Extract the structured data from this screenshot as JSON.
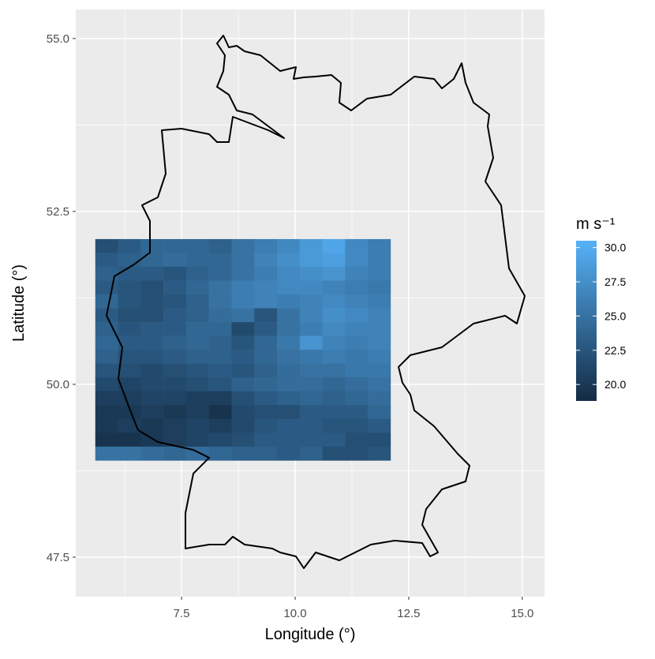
{
  "chart_data": {
    "type": "heatmap",
    "x_label": "Longitude (°)",
    "y_label": "Latitude (°)",
    "legend_title": "m s⁻¹",
    "x": [
      5.85,
      6.35,
      6.85,
      7.35,
      7.85,
      8.35,
      8.85,
      9.35,
      9.85,
      10.35,
      10.85,
      11.35,
      11.85
    ],
    "y": [
      52.0,
      51.8,
      51.6,
      51.4,
      51.2,
      51.0,
      50.8,
      50.6,
      50.4,
      50.2,
      50.0,
      49.8,
      49.6,
      49.4,
      49.2,
      49.0
    ],
    "z": [
      [
        22,
        23,
        24,
        24,
        24,
        23.5,
        25,
        26,
        27,
        28.5,
        29.5,
        27,
        26
      ],
      [
        23,
        23.5,
        24,
        24.5,
        24,
        24,
        25,
        26.5,
        27.5,
        28.5,
        29,
        27,
        26
      ],
      [
        23.5,
        23,
        23,
        22.5,
        23.5,
        24,
        25,
        26,
        27,
        27.5,
        28,
        26.5,
        26
      ],
      [
        23,
        22.5,
        22,
        23,
        24,
        25,
        26,
        26.5,
        27,
        27,
        26.5,
        26,
        25.5
      ],
      [
        24,
        22.5,
        22,
        22.5,
        23.5,
        25,
        26,
        26.5,
        26,
        26.5,
        27,
        26.5,
        26
      ],
      [
        23,
        22,
        22,
        23,
        23.5,
        24.5,
        25,
        22.5,
        25,
        26.5,
        27.5,
        27,
        26.5
      ],
      [
        23.5,
        22.5,
        23,
        23,
        24,
        24,
        21.5,
        23,
        25,
        26,
        27,
        26.5,
        26.5
      ],
      [
        24,
        23,
        23,
        23.5,
        24,
        23.5,
        22.5,
        24,
        25.5,
        28,
        26.5,
        26,
        26.5
      ],
      [
        23.5,
        22.5,
        22.5,
        23,
        23.5,
        23.5,
        23,
        24,
        25,
        25.5,
        26,
        25.5,
        26
      ],
      [
        22.5,
        22,
        21.5,
        22,
        22.5,
        23,
        22.5,
        23.5,
        24.5,
        25,
        25,
        25.5,
        25.5
      ],
      [
        21.5,
        21,
        21.5,
        21.5,
        22,
        22.5,
        23.5,
        24,
        24.5,
        24.5,
        24,
        24.5,
        25
      ],
      [
        20.5,
        20.5,
        21,
        21,
        20.5,
        20.5,
        22,
        23,
        23.5,
        24,
        23.5,
        24,
        24.5
      ],
      [
        20,
        20,
        20.5,
        20,
        20.5,
        19.5,
        21.5,
        22,
        22,
        23,
        23,
        23,
        24
      ],
      [
        20,
        20.5,
        20,
        20.5,
        21,
        20.5,
        21.5,
        22.5,
        23,
        23,
        22.5,
        22.5,
        23
      ],
      [
        19.5,
        19.5,
        20,
        20.5,
        21,
        21.5,
        22,
        23,
        23,
        23,
        23,
        22,
        22
      ],
      [
        25,
        25,
        24.5,
        24,
        24.5,
        24,
        23.5,
        23.5,
        23,
        23.5,
        22,
        22,
        22.5
      ]
    ],
    "xlim": [
      5.17,
      15.49
    ],
    "ylim": [
      46.93,
      55.42
    ],
    "xticks": [
      7.5,
      {
        "value": 10,
        "label": "10.0"
      },
      12.5,
      {
        "value": 15,
        "label": "15.0"
      }
    ],
    "yticks": [
      47.5,
      {
        "value": 50,
        "label": "50.0"
      },
      52.5,
      {
        "value": 55,
        "label": "55.0"
      }
    ],
    "colors": [
      "#132B43",
      "#56B1F7"
    ],
    "colorlim": [
      18.8,
      30.5
    ],
    "colorticks": [
      {
        "value": 20,
        "label": "20.0"
      },
      22.5,
      {
        "value": 25,
        "label": "25.0"
      },
      27.5,
      {
        "value": 30,
        "label": "30.0"
      }
    ],
    "grid": true
  }
}
